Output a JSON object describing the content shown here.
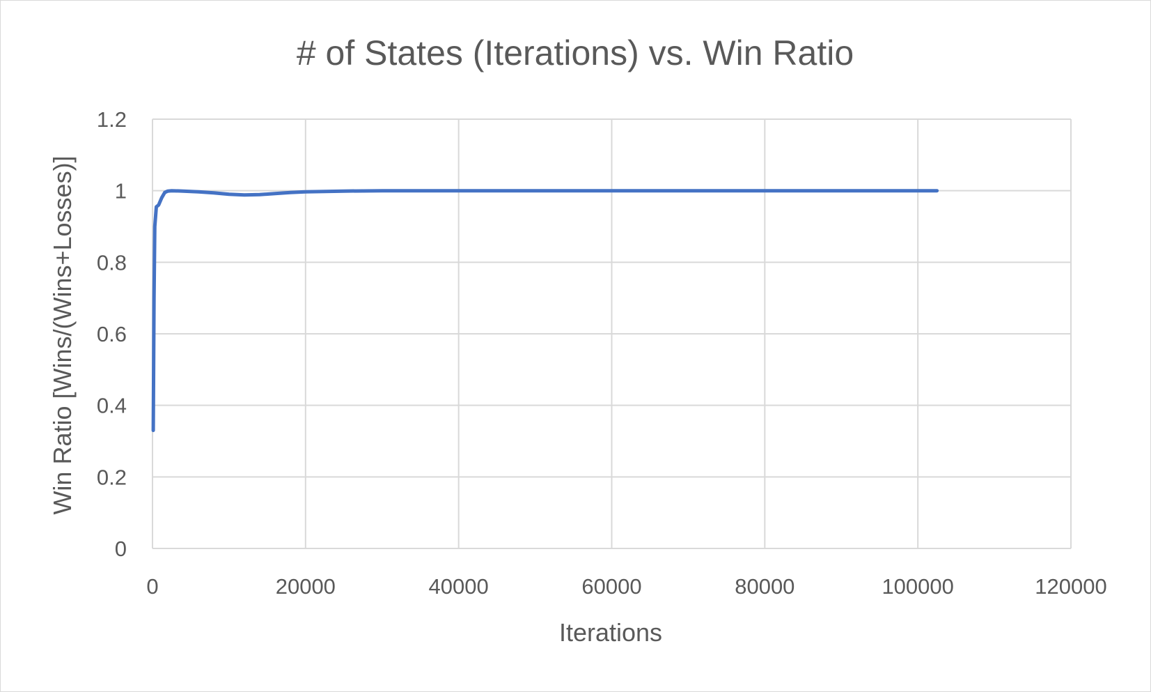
{
  "chart_data": {
    "type": "line",
    "title": "# of States (Iterations) vs. Win Ratio",
    "xlabel": "Iterations",
    "ylabel": "Win Ratio [Wins/(Wins+Losses)]",
    "xlim": [
      0,
      120000
    ],
    "ylim": [
      0,
      1.2
    ],
    "x_ticks": [
      "0",
      "20000",
      "40000",
      "60000",
      "80000",
      "100000",
      "120000"
    ],
    "y_ticks": [
      "0",
      "0.2",
      "0.4",
      "0.6",
      "0.8",
      "1",
      "1.2"
    ],
    "grid": true,
    "legend": "none",
    "series": [
      {
        "color": "#4472c4",
        "x": [
          100,
          200,
          300,
          500,
          800,
          1200,
          1600,
          2000,
          2500,
          4000,
          6000,
          8000,
          10000,
          12000,
          14000,
          16000,
          18000,
          20000,
          25000,
          30000,
          40000,
          60000,
          80000,
          96000,
          100000,
          102500
        ],
        "y": [
          0.33,
          0.7,
          0.9,
          0.955,
          0.96,
          0.98,
          0.995,
          0.999,
          1.0,
          0.999,
          0.997,
          0.994,
          0.99,
          0.988,
          0.989,
          0.992,
          0.995,
          0.997,
          0.999,
          1.0,
          1.0,
          1.0,
          1.0,
          1.0,
          1.0,
          1.0
        ]
      }
    ]
  }
}
